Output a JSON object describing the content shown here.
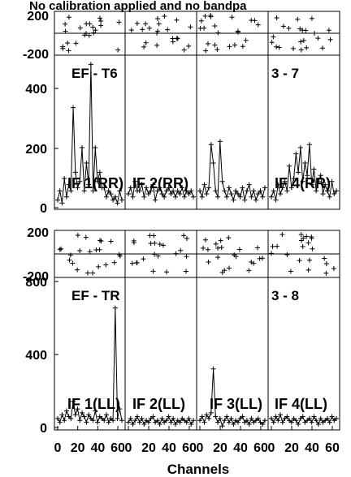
{
  "header": {
    "title": "No calibration applied and no bandpa"
  },
  "chart_data": {
    "type": "line",
    "xlabel": "Channels",
    "x_ticks": [
      "0",
      "20",
      "40",
      "60"
    ],
    "blocks": [
      {
        "baseline_left": "EF - T6",
        "baseline_right": "3 - 7",
        "phase_ticks": [
          "200",
          "-200"
        ],
        "amp_ticks": [
          "400",
          "200",
          "0"
        ],
        "amp_ylim": [
          0,
          500
        ],
        "panels": [
          {
            "label": "IF 1(RR)",
            "amp": [
              30,
              60,
              20,
              100,
              40,
              80,
              60,
              330,
              120,
              70,
              90,
              200,
              60,
              150,
              80,
              470,
              60,
              200,
              90,
              120,
              70,
              70,
              40,
              60,
              50,
              30,
              40,
              20,
              60,
              30
            ]
          },
          {
            "label": "IF 2(RR)",
            "amp": [
              50,
              70,
              40,
              90,
              60,
              60,
              80,
              40,
              70,
              50,
              60,
              80,
              30,
              60,
              70,
              50,
              40,
              60,
              70,
              50,
              60,
              40,
              60,
              50,
              70,
              40,
              60,
              50,
              60,
              40
            ]
          },
          {
            "label": "",
            "amp": [
              60,
              40,
              80,
              50,
              70,
              210,
              150,
              60,
              40,
              220,
              90,
              60,
              40,
              70,
              50,
              30,
              60,
              50,
              40,
              70,
              30,
              60,
              80,
              40,
              60,
              30,
              50,
              60,
              40,
              70
            ]
          },
          {
            "label": "IF 4(RR)",
            "amp": [
              40,
              60,
              30,
              80,
              50,
              70,
              90,
              60,
              140,
              70,
              100,
              180,
              120,
              200,
              90,
              150,
              110,
              210,
              80,
              130,
              60,
              90,
              110,
              50,
              80,
              60,
              40,
              90,
              50,
              60
            ]
          }
        ]
      },
      {
        "baseline_left": "EF - TR",
        "baseline_right": "3 - 8",
        "phase_ticks": [
          "200",
          "-200"
        ],
        "amp_ticks": [
          "800",
          "400",
          "0"
        ],
        "amp_ylim": [
          0,
          800
        ],
        "panels": [
          {
            "label": "IF 1(LL)",
            "amp": [
              60,
              40,
              80,
              50,
              100,
              70,
              60,
              150,
              80,
              110,
              50,
              90,
              70,
              40,
              80,
              60,
              50,
              100,
              40,
              70,
              60,
              50,
              80,
              40,
              60,
              50,
              640,
              60,
              110,
              50
            ]
          },
          {
            "label": "IF 2(LL)",
            "amp": [
              40,
              60,
              30,
              50,
              70,
              40,
              60,
              30,
              50,
              40,
              60,
              70,
              40,
              50,
              30,
              60,
              40,
              50,
              70,
              40,
              60,
              30,
              50,
              40,
              60,
              50,
              40,
              60,
              30,
              50
            ]
          },
          {
            "label": "IF 3(LL)",
            "amp": [
              50,
              70,
              40,
              80,
              60,
              90,
              320,
              70,
              40,
              60,
              20,
              50,
              70,
              40,
              60,
              30,
              50,
              40,
              60,
              70,
              40,
              50,
              30,
              60,
              40,
              50,
              60,
              40,
              30,
              50
            ]
          },
          {
            "label": "IF 4(LL)",
            "amp": [
              60,
              40,
              70,
              50,
              80,
              40,
              60,
              70,
              50,
              40,
              60,
              50,
              30,
              60,
              70,
              40,
              50,
              60,
              40,
              70,
              50,
              30,
              60,
              40,
              50,
              60,
              40,
              70,
              50,
              60
            ]
          }
        ]
      }
    ]
  }
}
